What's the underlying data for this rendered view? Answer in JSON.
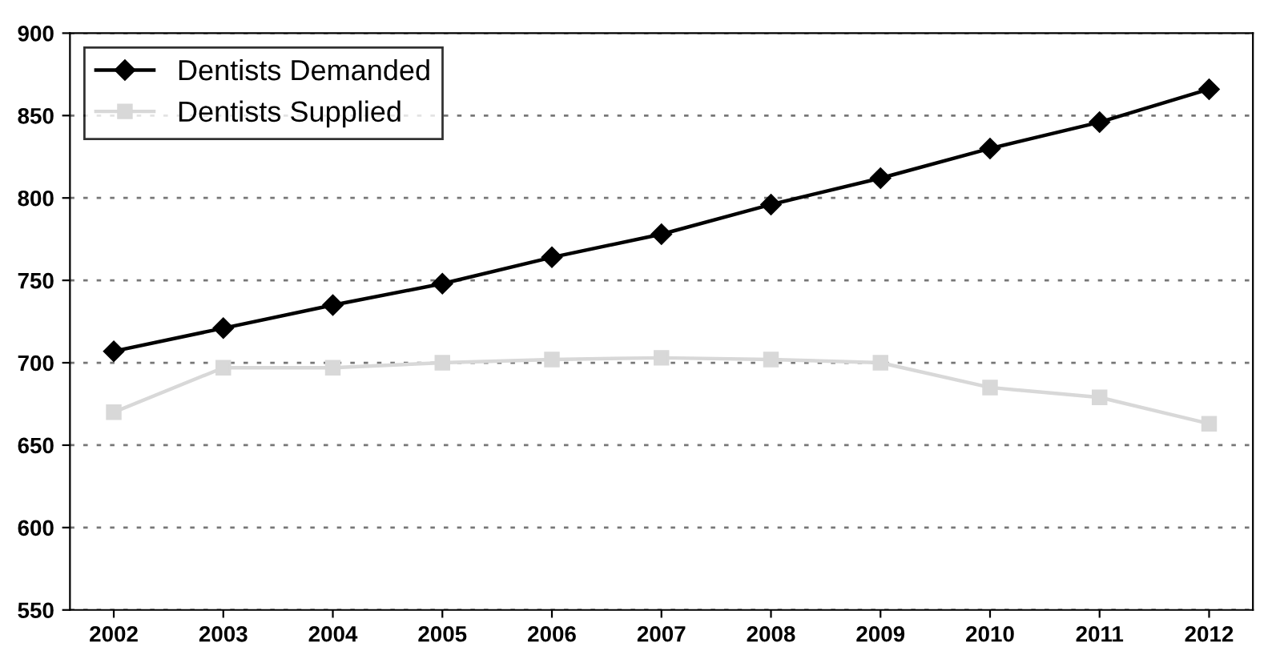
{
  "chart_data": {
    "type": "line",
    "x": [
      2002,
      2003,
      2004,
      2005,
      2006,
      2007,
      2008,
      2009,
      2010,
      2011,
      2012
    ],
    "series": [
      {
        "name": "Dentists Demanded",
        "color": "#000000",
        "marker": "diamond",
        "values": [
          707,
          721,
          735,
          748,
          764,
          778,
          796,
          812,
          830,
          846,
          866
        ]
      },
      {
        "name": "Dentists Supplied",
        "color": "#d8d8d8",
        "marker": "square",
        "values": [
          670,
          697,
          697,
          700,
          702,
          703,
          702,
          700,
          685,
          679,
          663
        ]
      }
    ],
    "xlim": [
      2001.6,
      2012.4
    ],
    "xticks": [
      2002,
      2003,
      2004,
      2005,
      2006,
      2007,
      2008,
      2009,
      2010,
      2011,
      2012
    ],
    "ylim": [
      550,
      900
    ],
    "yticks": [
      550,
      600,
      650,
      700,
      750,
      800,
      850,
      900
    ],
    "grid": "y",
    "legend": "top left"
  }
}
